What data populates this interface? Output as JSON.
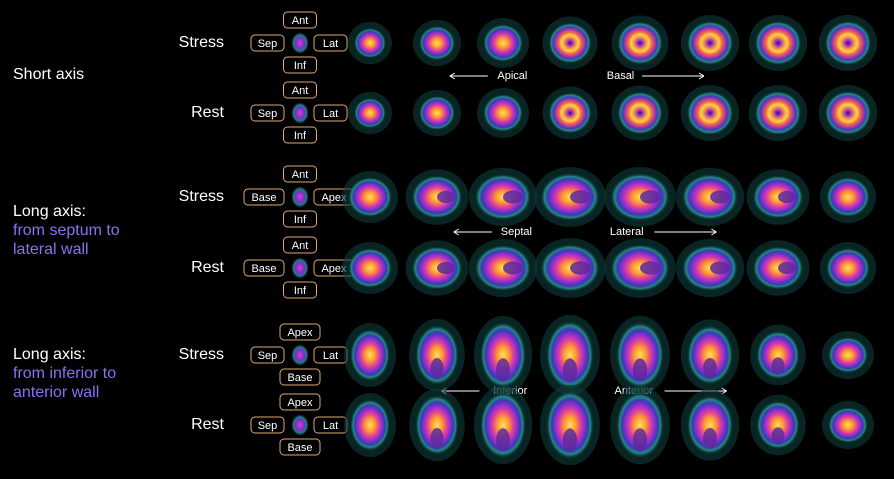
{
  "sections": [
    {
      "title": "Short axis",
      "arrows": {
        "left": "Apical",
        "right": "Basal"
      },
      "rows": [
        {
          "label": "Stress",
          "orient": {
            "top": "Ant",
            "left": "Sep",
            "right": "Lat",
            "bottom": "Inf"
          }
        },
        {
          "label": "Rest",
          "orient": {
            "top": "Ant",
            "left": "Sep",
            "right": "Lat",
            "bottom": "Inf"
          }
        }
      ]
    },
    {
      "title": "Long axis:",
      "subtitle_lines": [
        "from septum to",
        "lateral wall"
      ],
      "arrows": {
        "left": "Septal",
        "right": "Lateral"
      },
      "rows": [
        {
          "label": "Stress",
          "orient": {
            "top": "Ant",
            "left": "Base",
            "right": "Apex",
            "bottom": "Inf"
          }
        },
        {
          "label": "Rest",
          "orient": {
            "top": "Ant",
            "left": "Base",
            "right": "Apex",
            "bottom": "Inf"
          }
        }
      ]
    },
    {
      "title": "Long axis:",
      "subtitle_lines": [
        "from inferior to",
        "anterior wall"
      ],
      "arrows": {
        "left": "Inferior",
        "right": "Anterior"
      },
      "rows": [
        {
          "label": "Stress",
          "orient": {
            "top": "Apex",
            "left": "Sep",
            "right": "Lat",
            "bottom": "Base"
          }
        },
        {
          "label": "Rest",
          "orient": {
            "top": "Apex",
            "left": "Sep",
            "right": "Lat",
            "bottom": "Base"
          }
        }
      ]
    }
  ]
}
